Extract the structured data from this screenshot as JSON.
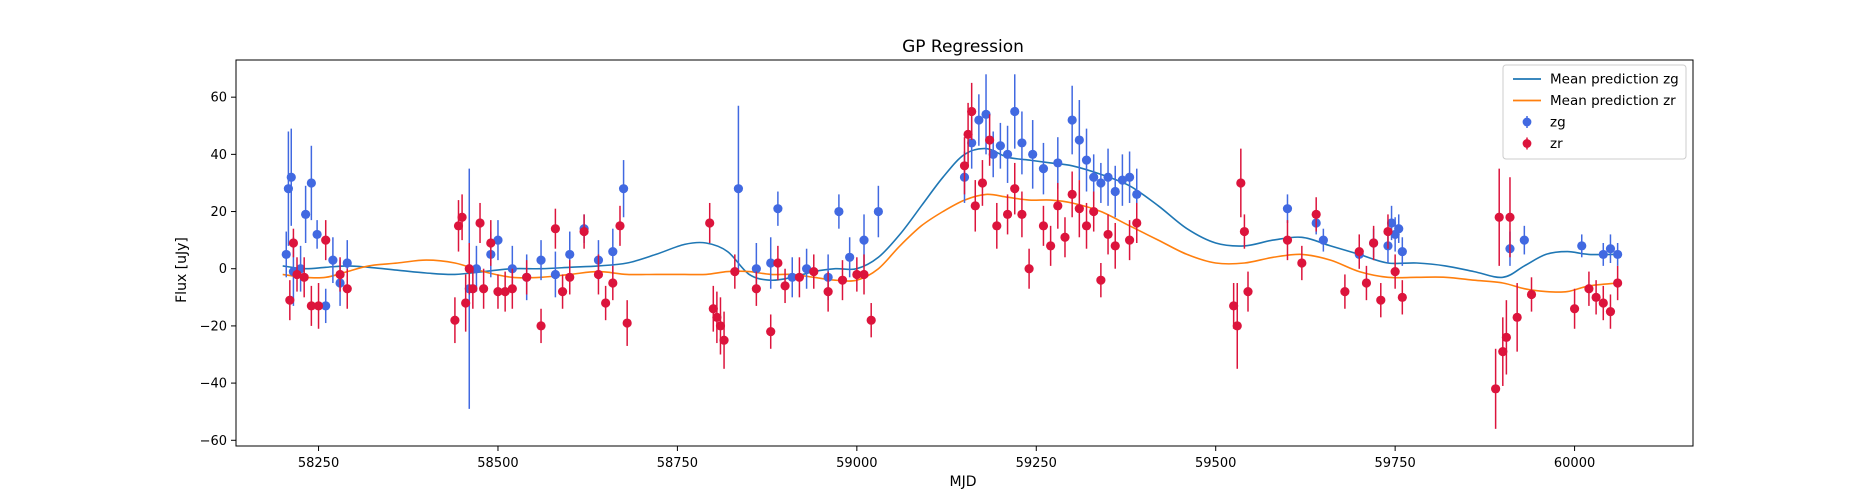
{
  "chart_data": {
    "type": "scatter",
    "title": "GP Regression",
    "xlabel": "MJD",
    "ylabel": "Flux [uJy]",
    "xlim": [
      58135,
      60165
    ],
    "ylim": [
      -62,
      73
    ],
    "xticks": [
      58250,
      58500,
      58750,
      59000,
      59250,
      59500,
      59750,
      60000
    ],
    "yticks": [
      -60,
      -40,
      -20,
      0,
      20,
      40,
      60
    ],
    "grid": false,
    "legend": {
      "placement": "top-right",
      "entries": [
        {
          "label": "Mean prediction zg",
          "kind": "line",
          "color": "#1f77b4"
        },
        {
          "label": "Mean prediction zr",
          "kind": "line",
          "color": "#ff7f0e"
        },
        {
          "label": "zg",
          "kind": "errorbar",
          "color": "#4169e1"
        },
        {
          "label": "zr",
          "kind": "errorbar",
          "color": "#dc143c"
        }
      ]
    },
    "lines": [
      {
        "name": "Mean prediction zg",
        "color": "#1f77b4",
        "x": [
          58200,
          58230,
          58260,
          58290,
          58320,
          58360,
          58400,
          58440,
          58480,
          58520,
          58560,
          58600,
          58640,
          58680,
          58720,
          58760,
          58790,
          58820,
          58850,
          58880,
          58910,
          58940,
          58970,
          59000,
          59030,
          59060,
          59090,
          59120,
          59150,
          59180,
          59210,
          59240,
          59270,
          59300,
          59340,
          59380,
          59420,
          59460,
          59500,
          59540,
          59580,
          59620,
          59660,
          59700,
          59740,
          59780,
          59820,
          59860,
          59900,
          59930,
          59960,
          59990,
          60020,
          60060
        ],
        "y": [
          1,
          0,
          0.5,
          1,
          0.5,
          -0.5,
          -1.5,
          -2,
          -1,
          0,
          0,
          0.5,
          1,
          2,
          5,
          8.5,
          9,
          6,
          -2,
          -4,
          -3,
          -1,
          0,
          0,
          4,
          12,
          22,
          32,
          40,
          42,
          39,
          38,
          37,
          36,
          33,
          29,
          22,
          14,
          9,
          8,
          10,
          11,
          8,
          5,
          2,
          2,
          1,
          -1,
          -3,
          1,
          5,
          6,
          5,
          5
        ]
      },
      {
        "name": "Mean prediction zr",
        "color": "#ff7f0e",
        "x": [
          58200,
          58230,
          58260,
          58290,
          58320,
          58360,
          58400,
          58440,
          58480,
          58520,
          58560,
          58600,
          58640,
          58680,
          58720,
          58760,
          58790,
          58820,
          58850,
          58880,
          58910,
          58940,
          58970,
          59000,
          59030,
          59060,
          59090,
          59120,
          59150,
          59180,
          59210,
          59240,
          59270,
          59300,
          59340,
          59380,
          59420,
          59460,
          59500,
          59540,
          59580,
          59620,
          59660,
          59700,
          59740,
          59780,
          59820,
          59860,
          59900,
          59930,
          59960,
          59990,
          60020,
          60060
        ],
        "y": [
          -2,
          -3,
          -3,
          -1,
          1,
          2,
          3,
          2,
          -1,
          -3,
          -3,
          -2,
          -1,
          -2,
          -2,
          -2,
          -2,
          -1,
          -1,
          -2,
          -2,
          -3,
          -4,
          -4,
          0,
          8,
          15,
          20,
          24,
          26,
          25,
          24,
          24,
          23,
          20,
          15,
          10,
          5,
          2,
          2,
          4,
          5,
          3,
          -1,
          -3,
          -3,
          -3,
          -4,
          -5,
          -7,
          -8,
          -8,
          -6,
          -5
        ]
      }
    ],
    "series": [
      {
        "name": "zg",
        "color": "#4169e1",
        "x": [
          58205,
          58208,
          58212,
          58215,
          58225,
          58232,
          58240,
          58248,
          58260,
          58270,
          58280,
          58290,
          58460,
          58470,
          58490,
          58500,
          58520,
          58540,
          58560,
          58580,
          58600,
          58620,
          58640,
          58660,
          58675,
          58835,
          58860,
          58880,
          58890,
          58910,
          58930,
          58960,
          58975,
          58990,
          59010,
          59030,
          59150,
          59160,
          59170,
          59180,
          59190,
          59200,
          59210,
          59220,
          59230,
          59245,
          59260,
          59280,
          59300,
          59310,
          59320,
          59330,
          59340,
          59350,
          59360,
          59370,
          59380,
          59390,
          59600,
          59640,
          59650,
          59700,
          59720,
          59740,
          59745,
          59750,
          59755,
          59760,
          59910,
          59930,
          60010,
          60040,
          60050,
          60060
        ],
        "y": [
          5,
          28,
          32,
          -1,
          0,
          19,
          30,
          12,
          -13,
          3,
          -5,
          2,
          -7,
          0,
          5,
          10,
          0,
          -3,
          3,
          -2,
          5,
          14,
          3,
          6,
          28,
          28,
          0,
          2,
          21,
          -3,
          0,
          -3,
          20,
          4,
          10,
          20,
          32,
          44,
          52,
          54,
          40,
          43,
          40,
          55,
          44,
          40,
          35,
          37,
          52,
          45,
          38,
          32,
          30,
          32,
          27,
          31,
          32,
          26,
          21,
          16,
          10,
          5,
          9,
          8,
          16,
          12,
          14,
          6,
          7,
          10,
          8,
          5,
          7,
          5
        ],
        "err": [
          8,
          20,
          17,
          12,
          8,
          10,
          13,
          5,
          6,
          8,
          8,
          8,
          42,
          8,
          8,
          7,
          8,
          8,
          7,
          8,
          8,
          5,
          7,
          8,
          10,
          29,
          9,
          9,
          6,
          7,
          7,
          8,
          6,
          7,
          9,
          9,
          9,
          9,
          9,
          14,
          8,
          8,
          10,
          13,
          11,
          12,
          9,
          9,
          12,
          14,
          11,
          8,
          7,
          10,
          9,
          9,
          9,
          9,
          5,
          4,
          4,
          5,
          5,
          6,
          6,
          6,
          5,
          5,
          6,
          5,
          4,
          4,
          5,
          4
        ]
      },
      {
        "name": "zr",
        "color": "#dc143c",
        "x": [
          58210,
          58215,
          58220,
          58230,
          58240,
          58250,
          58260,
          58280,
          58290,
          58440,
          58445,
          58450,
          58455,
          58460,
          58465,
          58475,
          58480,
          58490,
          58500,
          58510,
          58520,
          58540,
          58560,
          58580,
          58590,
          58600,
          58620,
          58640,
          58650,
          58660,
          58670,
          58680,
          58795,
          58800,
          58805,
          58810,
          58815,
          58830,
          58860,
          58880,
          58890,
          58900,
          58920,
          58940,
          58960,
          58980,
          59000,
          59010,
          59020,
          59150,
          59155,
          59160,
          59165,
          59175,
          59185,
          59195,
          59210,
          59220,
          59230,
          59240,
          59260,
          59270,
          59280,
          59290,
          59300,
          59310,
          59320,
          59330,
          59340,
          59350,
          59360,
          59380,
          59390,
          59525,
          59530,
          59535,
          59540,
          59545,
          59600,
          59620,
          59640,
          59680,
          59700,
          59710,
          59720,
          59730,
          59740,
          59750,
          59760,
          59890,
          59895,
          59900,
          59905,
          59910,
          59920,
          59940,
          60000,
          60020,
          60030,
          60040,
          60050,
          60060
        ],
        "y": [
          -11,
          9,
          -2,
          -3,
          -13,
          -13,
          10,
          -2,
          -7,
          -18,
          15,
          18,
          -12,
          0,
          -7,
          16,
          -7,
          9,
          -8,
          -8,
          -7,
          -3,
          -20,
          14,
          -8,
          -3,
          13,
          -2,
          -12,
          -5,
          15,
          -19,
          16,
          -14,
          -17,
          -20,
          -25,
          -1,
          -7,
          -22,
          2,
          -6,
          -3,
          -1,
          -8,
          -4,
          -2,
          -2,
          -18,
          36,
          47,
          55,
          22,
          30,
          45,
          15,
          19,
          28,
          19,
          0,
          15,
          8,
          22,
          11,
          26,
          21,
          15,
          20,
          -4,
          12,
          8,
          10,
          16,
          -13,
          -20,
          30,
          13,
          -8,
          10,
          2,
          19,
          -8,
          6,
          -5,
          9,
          -11,
          13,
          -1,
          -10,
          -42,
          18,
          -29,
          -24,
          18,
          -17,
          -9,
          -14,
          -7,
          -10,
          -12,
          -15,
          -5
        ],
        "err": [
          7,
          5,
          6,
          7,
          7,
          8,
          7,
          6,
          7,
          8,
          9,
          8,
          10,
          9,
          7,
          7,
          7,
          8,
          6,
          7,
          7,
          6,
          6,
          7,
          6,
          6,
          6,
          7,
          6,
          6,
          7,
          8,
          7,
          8,
          9,
          10,
          10,
          6,
          6,
          6,
          6,
          6,
          7,
          6,
          7,
          7,
          6,
          7,
          6,
          10,
          11,
          10,
          9,
          8,
          9,
          8,
          7,
          9,
          8,
          7,
          7,
          7,
          8,
          7,
          8,
          10,
          8,
          7,
          6,
          7,
          8,
          7,
          7,
          8,
          15,
          12,
          6,
          7,
          7,
          6,
          6,
          6,
          6,
          6,
          6,
          6,
          6,
          6,
          6,
          14,
          17,
          12,
          13,
          14,
          12,
          6,
          7,
          6,
          6,
          6,
          6,
          6
        ]
      }
    ]
  }
}
